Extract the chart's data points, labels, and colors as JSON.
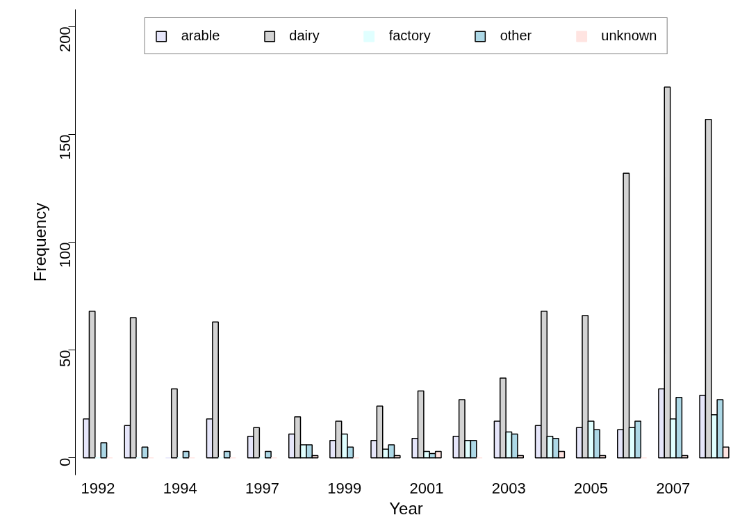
{
  "chart_data": {
    "type": "bar",
    "xlabel": "Year",
    "ylabel": "Frequency",
    "categories": [
      "1992",
      null,
      "1994",
      null,
      "1997",
      null,
      "1999",
      null,
      "2001",
      null,
      "2003",
      null,
      "2005",
      null,
      "2007",
      null
    ],
    "series": [
      {
        "name": "arable",
        "color": "#e6e6fa",
        "values": [
          18,
          15,
          0,
          18,
          10,
          11,
          8,
          8,
          9,
          10,
          17,
          15,
          14,
          13,
          32,
          29
        ]
      },
      {
        "name": "dairy",
        "color": "#d3d3d3",
        "values": [
          68,
          65,
          32,
          63,
          14,
          19,
          17,
          24,
          31,
          27,
          37,
          68,
          66,
          132,
          172,
          157
        ]
      },
      {
        "name": "factory",
        "color": "#e0ffff",
        "values": [
          0,
          0,
          0,
          0,
          0,
          6,
          11,
          4,
          3,
          8,
          12,
          10,
          17,
          14,
          18,
          20
        ]
      },
      {
        "name": "other",
        "color": "#add8e6",
        "values": [
          7,
          5,
          3,
          3,
          3,
          6,
          5,
          6,
          2,
          8,
          11,
          9,
          13,
          17,
          28,
          27
        ]
      },
      {
        "name": "unknown",
        "color": "#ffe4e1",
        "values": [
          0,
          0,
          0,
          0,
          0,
          1,
          0,
          1,
          3,
          0,
          1,
          3,
          1,
          0,
          1,
          5
        ]
      }
    ],
    "ylim": [
      -8,
      208
    ],
    "yticks": [
      0,
      50,
      100,
      150,
      200
    ],
    "grid": false,
    "legend": "top"
  }
}
